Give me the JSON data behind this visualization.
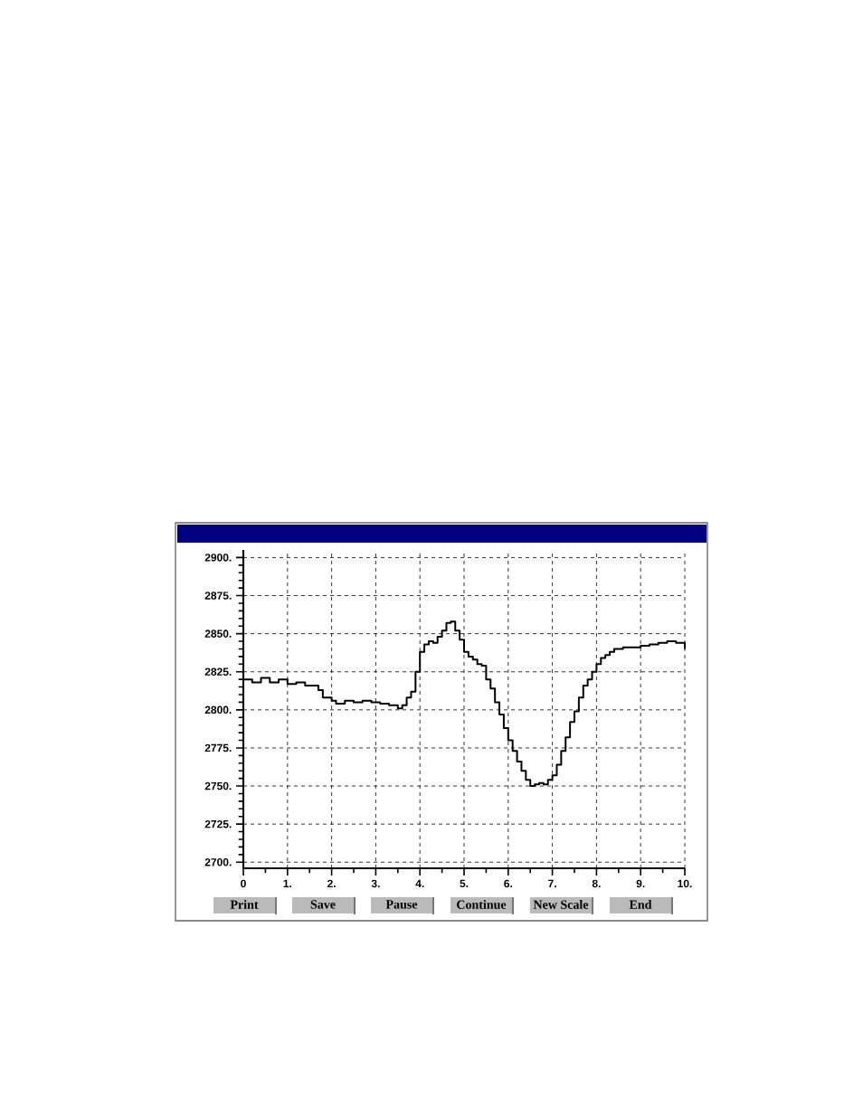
{
  "chart_data": {
    "type": "step",
    "x": [
      0,
      0.2,
      0.4,
      0.6,
      0.8,
      1.0,
      1.2,
      1.4,
      1.6,
      1.7,
      1.8,
      2.0,
      2.1,
      2.3,
      2.5,
      2.7,
      2.9,
      3.1,
      3.3,
      3.5,
      3.6,
      3.7,
      3.8,
      3.9,
      4.0,
      4.1,
      4.2,
      4.3,
      4.4,
      4.5,
      4.6,
      4.7,
      4.8,
      4.9,
      5.0,
      5.1,
      5.2,
      5.3,
      5.4,
      5.5,
      5.6,
      5.7,
      5.8,
      5.9,
      6.0,
      6.1,
      6.2,
      6.3,
      6.4,
      6.5,
      6.6,
      6.7,
      6.8,
      6.9,
      7.0,
      7.1,
      7.2,
      7.3,
      7.4,
      7.5,
      7.6,
      7.7,
      7.8,
      7.9,
      8.0,
      8.1,
      8.2,
      8.3,
      8.4,
      8.6,
      8.8,
      9.0,
      9.2,
      9.4,
      9.6,
      9.8,
      10.0
    ],
    "series": [
      {
        "color": "#000000",
        "values": [
          2820,
          2818,
          2821,
          2818,
          2820,
          2817,
          2818,
          2816,
          2816,
          2813,
          2808,
          2806,
          2804,
          2806,
          2805,
          2806,
          2805,
          2804,
          2803,
          2801,
          2803,
          2808,
          2812,
          2825,
          2838,
          2843,
          2845,
          2844,
          2848,
          2852,
          2857,
          2858,
          2852,
          2846,
          2838,
          2835,
          2833,
          2830,
          2829,
          2820,
          2814,
          2805,
          2797,
          2788,
          2780,
          2773,
          2766,
          2760,
          2754,
          2750,
          2751,
          2752,
          2751,
          2754,
          2757,
          2764,
          2773,
          2782,
          2792,
          2799,
          2808,
          2816,
          2820,
          2825,
          2830,
          2834,
          2836,
          2838,
          2840,
          2841,
          2841,
          2842,
          2843,
          2844,
          2845,
          2844,
          2840
        ]
      }
    ],
    "xlim": [
      0,
      10
    ],
    "ylim": [
      2696,
      2905
    ],
    "xticks": [
      0,
      {
        "value": 1,
        "label": "1."
      },
      {
        "value": 2,
        "label": "2."
      },
      {
        "value": 3,
        "label": "3."
      },
      {
        "value": 4,
        "label": "4."
      },
      {
        "value": 5,
        "label": "5."
      },
      {
        "value": 6,
        "label": "6."
      },
      {
        "value": 7,
        "label": "7."
      },
      {
        "value": 8,
        "label": "8."
      },
      {
        "value": 9,
        "label": "9."
      },
      {
        "value": 10,
        "label": "10."
      }
    ],
    "yticks": [
      {
        "value": 2700,
        "label": "2700."
      },
      {
        "value": 2725,
        "label": "2725."
      },
      {
        "value": 2750,
        "label": "2750."
      },
      {
        "value": 2775,
        "label": "2775."
      },
      {
        "value": 2800,
        "label": "2800."
      },
      {
        "value": 2825,
        "label": "2825."
      },
      {
        "value": 2850,
        "label": "2850."
      },
      {
        "value": 2875,
        "label": "2875."
      },
      {
        "value": 2900,
        "label": "2900."
      }
    ],
    "grid": true,
    "line_style": "solid",
    "marker": "none",
    "annotations": [
      "Print",
      "Save",
      "Pause",
      "Continue",
      "New Scale",
      "End"
    ]
  }
}
